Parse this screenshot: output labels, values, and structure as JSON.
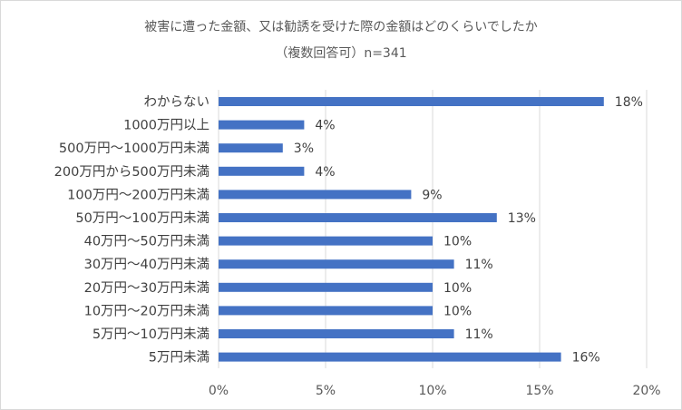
{
  "chart_data": {
    "type": "bar",
    "orientation": "horizontal",
    "title": "被害に遭った金額、又は勧誘を受けた際の金額はどのくらいでしたか",
    "subtitle": "（複数回答可）n=341",
    "categories": [
      "わからない",
      "1000万円以上",
      "500万円～1000万円未満",
      "200万円から500万円未満",
      "100万円～200万円未満",
      "50万円～100万円未満",
      "40万円～50万円未満",
      "30万円～40万円未満",
      "20万円～30万円未満",
      "10万円～20万円未満",
      "5万円～10万円未満",
      "5万円未満"
    ],
    "values": [
      18,
      4,
      3,
      4,
      9,
      13,
      10,
      11,
      10,
      10,
      11,
      16
    ],
    "value_labels": [
      "18%",
      "4%",
      "3%",
      "4%",
      "9%",
      "13%",
      "10%",
      "11%",
      "10%",
      "10%",
      "11%",
      "16%"
    ],
    "x_ticks": [
      0,
      5,
      10,
      15,
      20
    ],
    "x_tick_labels": [
      "0%",
      "5%",
      "10%",
      "15%",
      "20%"
    ],
    "xlim": [
      0,
      20
    ],
    "grid": true,
    "legend": "none",
    "bar_color": "#4472c4",
    "grid_color": "#d9d9d9",
    "text_color": "#404040"
  }
}
